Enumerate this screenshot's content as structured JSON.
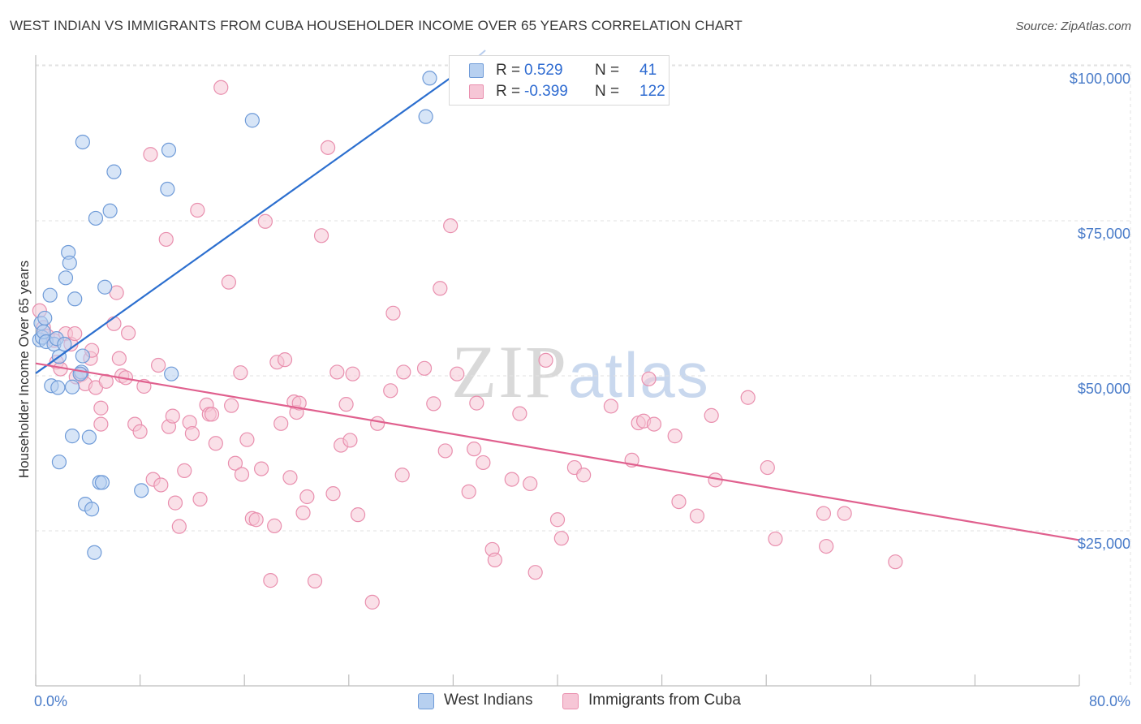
{
  "title": "WEST INDIAN VS IMMIGRANTS FROM CUBA HOUSEHOLDER INCOME OVER 65 YEARS CORRELATION CHART",
  "source": "Source: ZipAtlas.com",
  "watermark": {
    "zip": "ZIP",
    "atlas": "atlas"
  },
  "legend_top": {
    "rows": [
      {
        "r_label": "R =",
        "r_value": "0.529",
        "n_label": "N =",
        "n_value": "41"
      },
      {
        "r_label": "R =",
        "r_value": "-0.399",
        "n_label": "N =",
        "n_value": "122"
      }
    ]
  },
  "legend_bottom": {
    "items": [
      "West Indians",
      "Immigrants from Cuba"
    ]
  },
  "colors": {
    "blue_fill": "#b7d0f0",
    "blue_stroke": "#6f9bd8",
    "blue_line": "#2c6fcf",
    "pink_fill": "#f6c6d6",
    "pink_stroke": "#e98fae",
    "pink_line": "#e0608e",
    "grid": "#e2e2e2",
    "tick_text": "#4a7cc9"
  },
  "chart_data": {
    "type": "scatter",
    "title": "WEST INDIAN VS IMMIGRANTS FROM CUBA HOUSEHOLDER INCOME OVER 65 YEARS CORRELATION CHART",
    "xlabel": "",
    "ylabel": "Householder Income Over 65 years",
    "xlim": [
      0,
      80
    ],
    "ylim": [
      2000,
      103000
    ],
    "x_tick_labels": [
      "0.0%",
      "80.0%"
    ],
    "y_ticks": [
      25000,
      50000,
      75000,
      100000
    ],
    "y_tick_labels": [
      "$25,000",
      "$50,000",
      "$75,000",
      "$100,000"
    ],
    "grid": true,
    "legend_position": "bottom",
    "series": [
      {
        "name": "West Indians",
        "r": 0.529,
        "n": 41,
        "trend": {
          "x": [
            0,
            33.1
          ],
          "y": [
            50400,
            100000
          ]
        },
        "points": [
          [
            0.3,
            55800
          ],
          [
            0.4,
            58500
          ],
          [
            0.5,
            56200
          ],
          [
            0.6,
            57100
          ],
          [
            0.7,
            59300
          ],
          [
            0.8,
            55500
          ],
          [
            1.1,
            63000
          ],
          [
            1.2,
            48400
          ],
          [
            1.4,
            55100
          ],
          [
            1.6,
            56000
          ],
          [
            1.7,
            48100
          ],
          [
            1.8,
            36100
          ],
          [
            1.8,
            53100
          ],
          [
            2.2,
            55100
          ],
          [
            2.3,
            65800
          ],
          [
            2.5,
            69900
          ],
          [
            2.6,
            68200
          ],
          [
            2.8,
            48200
          ],
          [
            2.8,
            40300
          ],
          [
            3.0,
            62400
          ],
          [
            3.5,
            50600
          ],
          [
            3.6,
            53200
          ],
          [
            3.6,
            87700
          ],
          [
            3.8,
            29300
          ],
          [
            4.1,
            40100
          ],
          [
            4.3,
            28500
          ],
          [
            4.5,
            21500
          ],
          [
            4.6,
            75400
          ],
          [
            4.9,
            32800
          ],
          [
            5.1,
            32800
          ],
          [
            5.3,
            64300
          ],
          [
            5.7,
            76600
          ],
          [
            6.0,
            82900
          ],
          [
            8.1,
            31500
          ],
          [
            10.1,
            80100
          ],
          [
            10.2,
            86400
          ],
          [
            10.4,
            50300
          ],
          [
            16.6,
            91200
          ],
          [
            29.9,
            91800
          ],
          [
            30.2,
            98000
          ],
          [
            3.4,
            50300
          ]
        ]
      },
      {
        "name": "Immigrants from Cuba",
        "r": -0.399,
        "n": 122,
        "trend": {
          "x": [
            0,
            80
          ],
          "y": [
            52000,
            23500
          ]
        },
        "points": [
          [
            0.3,
            60500
          ],
          [
            0.6,
            57800
          ],
          [
            0.9,
            56400
          ],
          [
            1.4,
            55700
          ],
          [
            1.6,
            52200
          ],
          [
            1.9,
            51100
          ],
          [
            2.3,
            56800
          ],
          [
            2.7,
            55100
          ],
          [
            3.0,
            56800
          ],
          [
            3.1,
            49800
          ],
          [
            3.5,
            50200
          ],
          [
            3.8,
            48700
          ],
          [
            4.2,
            52800
          ],
          [
            4.3,
            54100
          ],
          [
            4.6,
            48100
          ],
          [
            5.0,
            44800
          ],
          [
            5.0,
            42200
          ],
          [
            5.4,
            49100
          ],
          [
            6.0,
            58400
          ],
          [
            6.2,
            63400
          ],
          [
            6.4,
            52800
          ],
          [
            6.6,
            50000
          ],
          [
            6.9,
            49700
          ],
          [
            7.1,
            56900
          ],
          [
            7.6,
            42200
          ],
          [
            8.0,
            41000
          ],
          [
            8.3,
            48300
          ],
          [
            8.8,
            85700
          ],
          [
            9.0,
            33300
          ],
          [
            9.4,
            51700
          ],
          [
            9.6,
            32400
          ],
          [
            10.0,
            72000
          ],
          [
            10.2,
            41800
          ],
          [
            10.5,
            43500
          ],
          [
            10.7,
            29500
          ],
          [
            11.0,
            25700
          ],
          [
            11.4,
            34700
          ],
          [
            11.8,
            42500
          ],
          [
            12.0,
            40700
          ],
          [
            12.4,
            76700
          ],
          [
            12.6,
            30100
          ],
          [
            13.1,
            45300
          ],
          [
            13.3,
            43800
          ],
          [
            13.5,
            43800
          ],
          [
            13.8,
            39100
          ],
          [
            14.2,
            96500
          ],
          [
            14.8,
            65100
          ],
          [
            15.0,
            45200
          ],
          [
            15.3,
            35900
          ],
          [
            15.7,
            50500
          ],
          [
            15.8,
            34100
          ],
          [
            16.2,
            39700
          ],
          [
            16.6,
            27000
          ],
          [
            16.9,
            26800
          ],
          [
            17.3,
            35000
          ],
          [
            17.6,
            74900
          ],
          [
            18.0,
            17000
          ],
          [
            18.3,
            25800
          ],
          [
            18.5,
            52200
          ],
          [
            18.8,
            42300
          ],
          [
            19.1,
            52600
          ],
          [
            19.5,
            33600
          ],
          [
            19.8,
            45800
          ],
          [
            20.0,
            44100
          ],
          [
            20.2,
            45600
          ],
          [
            20.5,
            27900
          ],
          [
            20.8,
            30500
          ],
          [
            21.4,
            16900
          ],
          [
            21.9,
            72600
          ],
          [
            22.4,
            86800
          ],
          [
            22.8,
            31000
          ],
          [
            23.1,
            50600
          ],
          [
            23.4,
            38800
          ],
          [
            23.8,
            45400
          ],
          [
            24.1,
            39600
          ],
          [
            24.3,
            50300
          ],
          [
            24.7,
            27600
          ],
          [
            25.8,
            13500
          ],
          [
            26.2,
            42300
          ],
          [
            27.2,
            47600
          ],
          [
            27.4,
            60100
          ],
          [
            28.1,
            34000
          ],
          [
            28.2,
            50600
          ],
          [
            29.8,
            51200
          ],
          [
            30.5,
            45500
          ],
          [
            31.0,
            64100
          ],
          [
            31.4,
            37900
          ],
          [
            31.8,
            74200
          ],
          [
            32.3,
            50300
          ],
          [
            33.2,
            31300
          ],
          [
            33.6,
            38200
          ],
          [
            33.8,
            45600
          ],
          [
            34.3,
            36000
          ],
          [
            35.0,
            22000
          ],
          [
            35.2,
            20300
          ],
          [
            36.5,
            33300
          ],
          [
            37.1,
            43900
          ],
          [
            37.9,
            32600
          ],
          [
            38.3,
            18300
          ],
          [
            39.1,
            52500
          ],
          [
            40.0,
            26800
          ],
          [
            40.3,
            23800
          ],
          [
            41.3,
            35200
          ],
          [
            42.0,
            34000
          ],
          [
            44.1,
            45100
          ],
          [
            45.7,
            36400
          ],
          [
            46.2,
            42400
          ],
          [
            46.6,
            42700
          ],
          [
            47.0,
            49500
          ],
          [
            47.4,
            42200
          ],
          [
            49.0,
            40300
          ],
          [
            49.3,
            29700
          ],
          [
            50.7,
            27400
          ],
          [
            51.8,
            43600
          ],
          [
            52.1,
            33200
          ],
          [
            54.6,
            46500
          ],
          [
            56.1,
            35200
          ],
          [
            56.7,
            23700
          ],
          [
            60.4,
            27800
          ],
          [
            60.6,
            22500
          ],
          [
            62.0,
            27800
          ],
          [
            65.9,
            20000
          ]
        ]
      }
    ]
  }
}
